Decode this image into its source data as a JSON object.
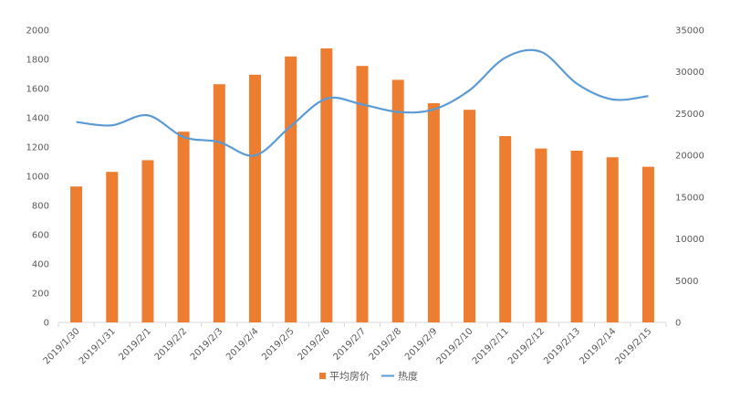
{
  "chart_data": {
    "type": "bar",
    "categories": [
      "2019/1/30",
      "2019/1/31",
      "2019/2/1",
      "2019/2/2",
      "2019/2/3",
      "2019/2/4",
      "2019/2/5",
      "2019/2/6",
      "2019/2/7",
      "2019/2/8",
      "2019/2/9",
      "2019/2/10",
      "2019/2/11",
      "2019/2/12",
      "2019/2/13",
      "2019/2/14",
      "2019/2/15"
    ],
    "series": [
      {
        "name": "平均房价",
        "type": "bar",
        "axis": "left",
        "color": "#ED7D31",
        "values": [
          930,
          1030,
          1110,
          1305,
          1630,
          1695,
          1820,
          1875,
          1755,
          1660,
          1500,
          1455,
          1275,
          1190,
          1175,
          1130,
          1065
        ]
      },
      {
        "name": "热度",
        "type": "line",
        "axis": "right",
        "color": "#5B9BD5",
        "smooth": true,
        "values": [
          24000,
          23600,
          24800,
          22200,
          21600,
          20000,
          23500,
          26800,
          26100,
          25200,
          25500,
          27800,
          31700,
          32400,
          28600,
          26700,
          27100
        ]
      }
    ],
    "y_left": {
      "min": 0,
      "max": 2000,
      "ticks": [
        "0",
        "200",
        "400",
        "600",
        "800",
        "1000",
        "1200",
        "1400",
        "1600",
        "1800",
        "2000"
      ]
    },
    "y_right": {
      "min": 0,
      "max": 35000,
      "ticks": [
        "0",
        "5000",
        "10000",
        "15000",
        "20000",
        "25000",
        "30000",
        "35000"
      ]
    },
    "grid": false,
    "legend": {
      "position": "bottom",
      "items": [
        "平均房价",
        "热度"
      ]
    }
  }
}
